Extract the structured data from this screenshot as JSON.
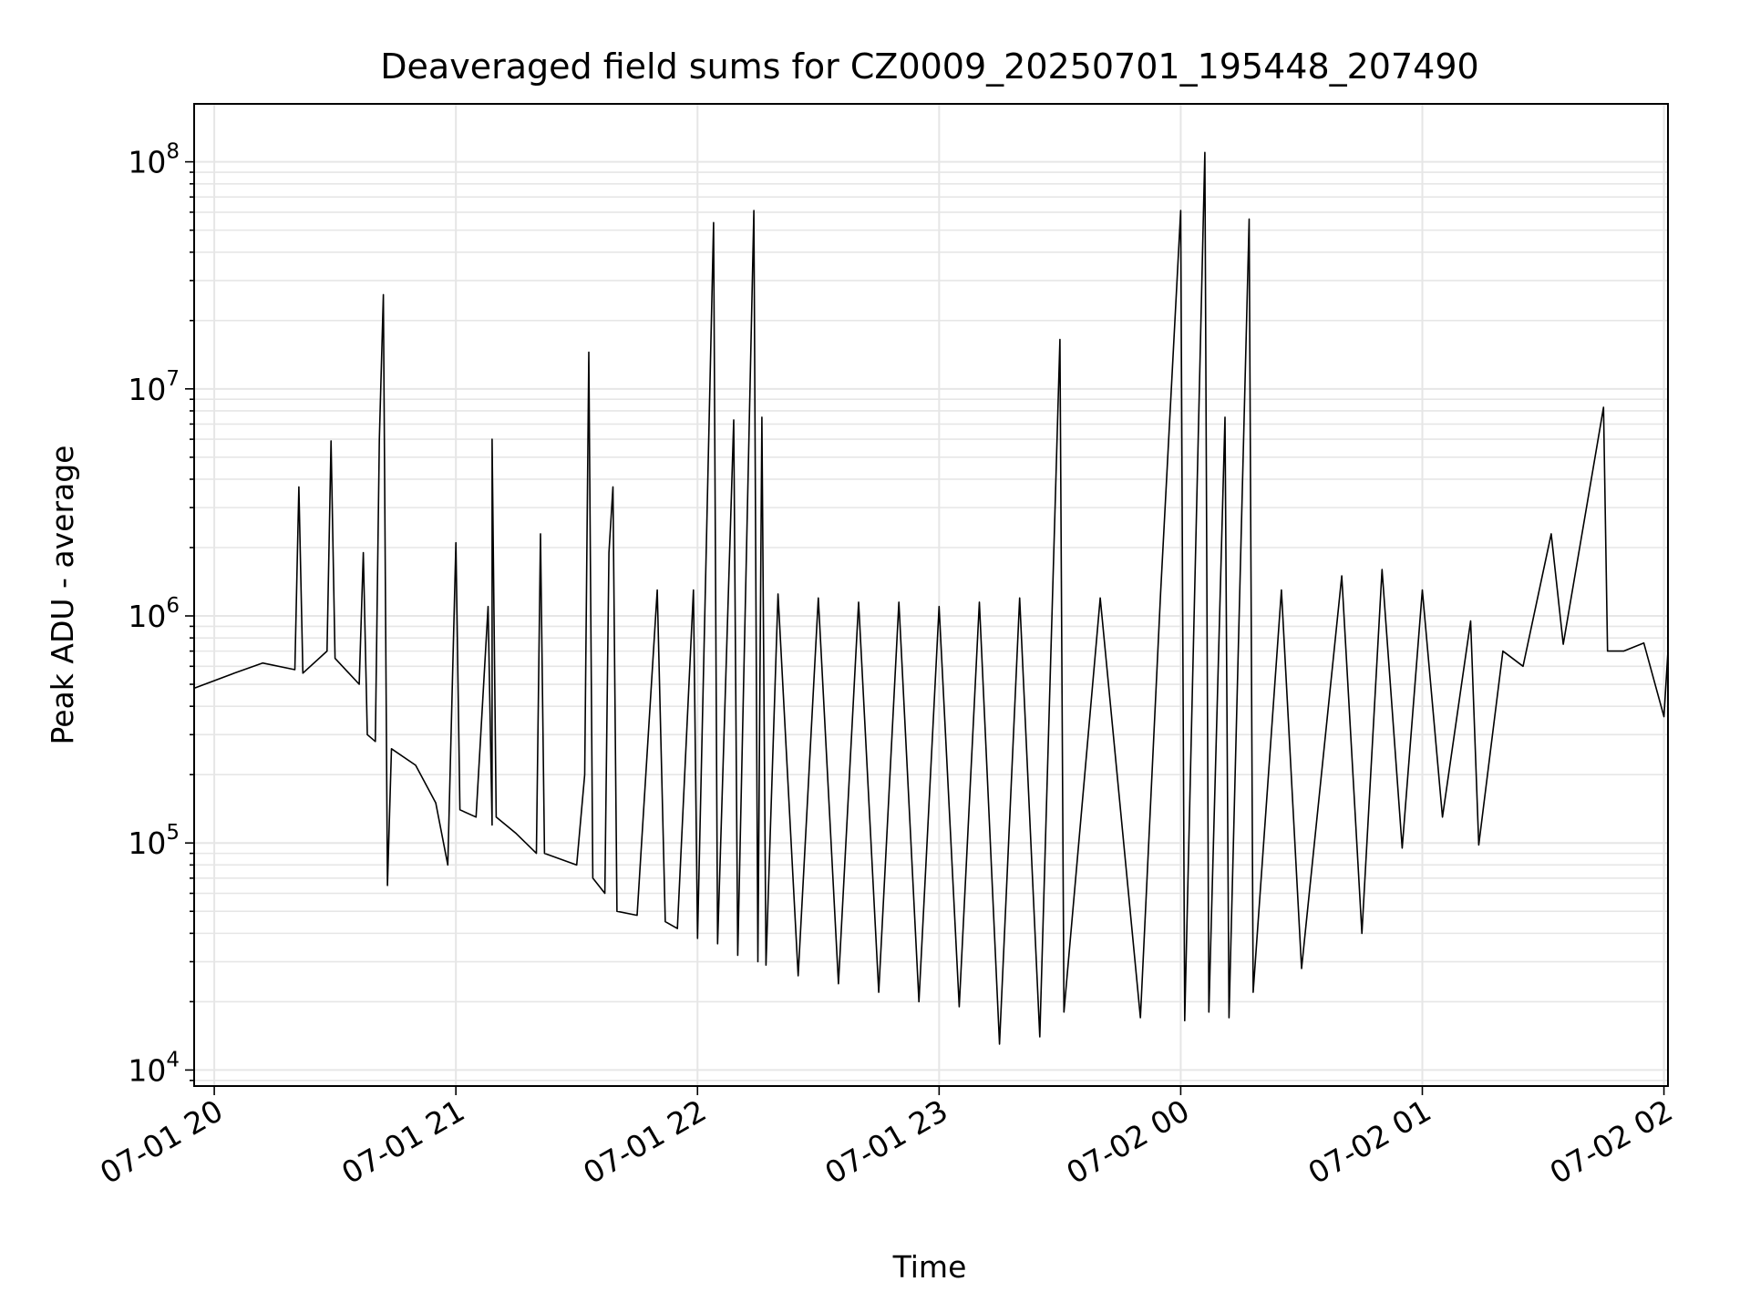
{
  "chart_data": {
    "type": "line",
    "title": "Deaveraged field sums for CZ0009_20250701_195448_207490",
    "xlabel": "Time",
    "ylabel": "Peak ADU - average",
    "x_scale": "time",
    "y_scale": "log",
    "xlim": [
      "2025-07-01 19:55",
      "2025-07-02 02:01"
    ],
    "ylim": [
      8500,
      180000000
    ],
    "grid": true,
    "legend": "none",
    "line_color": "#000000",
    "grid_color": "#e6e6e6",
    "x_ticks": [
      {
        "t": "2025-07-01 20:00",
        "label": "07-01 20"
      },
      {
        "t": "2025-07-01 21:00",
        "label": "07-01 21"
      },
      {
        "t": "2025-07-01 22:00",
        "label": "07-01 22"
      },
      {
        "t": "2025-07-01 23:00",
        "label": "07-01 23"
      },
      {
        "t": "2025-07-02 00:00",
        "label": "07-02 00"
      },
      {
        "t": "2025-07-02 01:00",
        "label": "07-02 01"
      },
      {
        "t": "2025-07-02 02:00",
        "label": "07-02 02"
      }
    ],
    "y_ticks": [
      {
        "v": 10000,
        "base": "10",
        "exp": "4"
      },
      {
        "v": 100000,
        "base": "10",
        "exp": "5"
      },
      {
        "v": 1000000,
        "base": "10",
        "exp": "6"
      },
      {
        "v": 10000000,
        "base": "10",
        "exp": "7"
      },
      {
        "v": 100000000,
        "base": "10",
        "exp": "8"
      }
    ],
    "series": [
      {
        "points": [
          [
            "2025-07-01 19:55",
            480000
          ],
          [
            "2025-07-01 20:05",
            560000
          ],
          [
            "2025-07-01 20:12",
            620000
          ],
          [
            "2025-07-01 20:20",
            580000
          ],
          [
            "2025-07-01 20:21",
            3700000
          ],
          [
            "2025-07-01 20:22",
            560000
          ],
          [
            "2025-07-01 20:28",
            700000
          ],
          [
            "2025-07-01 20:29",
            5900000
          ],
          [
            "2025-07-01 20:30",
            650000
          ],
          [
            "2025-07-01 20:36",
            500000
          ],
          [
            "2025-07-01 20:37",
            1900000
          ],
          [
            "2025-07-01 20:38",
            300000
          ],
          [
            "2025-07-01 20:40",
            280000
          ],
          [
            "2025-07-01 20:41",
            6000000
          ],
          [
            "2025-07-01 20:42",
            26000000
          ],
          [
            "2025-07-01 20:43",
            65000
          ],
          [
            "2025-07-01 20:44",
            260000
          ],
          [
            "2025-07-01 20:50",
            220000
          ],
          [
            "2025-07-01 20:55",
            150000
          ],
          [
            "2025-07-01 20:58",
            80000
          ],
          [
            "2025-07-01 21:00",
            2100000
          ],
          [
            "2025-07-01 21:01",
            140000
          ],
          [
            "2025-07-01 21:05",
            130000
          ],
          [
            "2025-07-01 21:08",
            1100000
          ],
          [
            "2025-07-01 21:09",
            120000
          ],
          [
            "2025-07-01 21:09",
            6000000
          ],
          [
            "2025-07-01 21:10",
            130000
          ],
          [
            "2025-07-01 21:15",
            110000
          ],
          [
            "2025-07-01 21:20",
            90000
          ],
          [
            "2025-07-01 21:21",
            2300000
          ],
          [
            "2025-07-01 21:22",
            90000
          ],
          [
            "2025-07-01 21:30",
            80000
          ],
          [
            "2025-07-01 21:32",
            200000
          ],
          [
            "2025-07-01 21:33",
            14500000
          ],
          [
            "2025-07-01 21:34",
            70000
          ],
          [
            "2025-07-01 21:37",
            60000
          ],
          [
            "2025-07-01 21:38",
            1900000
          ],
          [
            "2025-07-01 21:39",
            3700000
          ],
          [
            "2025-07-01 21:40",
            50000
          ],
          [
            "2025-07-01 21:45",
            48000
          ],
          [
            "2025-07-01 21:50",
            1300000
          ],
          [
            "2025-07-01 21:52",
            45000
          ],
          [
            "2025-07-01 21:55",
            42000
          ],
          [
            "2025-07-01 21:59",
            1300000
          ],
          [
            "2025-07-01 22:00",
            38000
          ],
          [
            "2025-07-01 22:04",
            54000000
          ],
          [
            "2025-07-01 22:05",
            36000
          ],
          [
            "2025-07-01 22:09",
            7300000
          ],
          [
            "2025-07-01 22:10",
            32000
          ],
          [
            "2025-07-01 22:14",
            61000000
          ],
          [
            "2025-07-01 22:15",
            30000
          ],
          [
            "2025-07-01 22:16",
            7500000
          ],
          [
            "2025-07-01 22:17",
            29000
          ],
          [
            "2025-07-01 22:20",
            1250000
          ],
          [
            "2025-07-01 22:25",
            26000
          ],
          [
            "2025-07-01 22:30",
            1200000
          ],
          [
            "2025-07-01 22:35",
            24000
          ],
          [
            "2025-07-01 22:40",
            1150000
          ],
          [
            "2025-07-01 22:45",
            22000
          ],
          [
            "2025-07-01 22:50",
            1150000
          ],
          [
            "2025-07-01 22:55",
            20000
          ],
          [
            "2025-07-01 23:00",
            1100000
          ],
          [
            "2025-07-01 23:05",
            19000
          ],
          [
            "2025-07-01 23:10",
            1150000
          ],
          [
            "2025-07-01 23:15",
            13000
          ],
          [
            "2025-07-01 23:20",
            1200000
          ],
          [
            "2025-07-01 23:25",
            14000
          ],
          [
            "2025-07-01 23:30",
            16500000
          ],
          [
            "2025-07-01 23:31",
            18000
          ],
          [
            "2025-07-01 23:40",
            1200000
          ],
          [
            "2025-07-01 23:50",
            17000
          ],
          [
            "2025-07-01 23:55",
            1250000
          ],
          [
            "2025-07-02 00:00",
            61000000
          ],
          [
            "2025-07-02 00:01",
            16500
          ],
          [
            "2025-07-02 00:06",
            110000000
          ],
          [
            "2025-07-02 00:07",
            18000
          ],
          [
            "2025-07-02 00:11",
            7500000
          ],
          [
            "2025-07-02 00:12",
            17000
          ],
          [
            "2025-07-02 00:17",
            56000000
          ],
          [
            "2025-07-02 00:18",
            22000
          ],
          [
            "2025-07-02 00:25",
            1300000
          ],
          [
            "2025-07-02 00:30",
            28000
          ],
          [
            "2025-07-02 00:40",
            1500000
          ],
          [
            "2025-07-02 00:45",
            40000
          ],
          [
            "2025-07-02 00:50",
            1600000
          ],
          [
            "2025-07-02 00:55",
            95000
          ],
          [
            "2025-07-02 01:00",
            1300000
          ],
          [
            "2025-07-02 01:05",
            130000
          ],
          [
            "2025-07-02 01:12",
            950000
          ],
          [
            "2025-07-02 01:14",
            98000
          ],
          [
            "2025-07-02 01:20",
            700000
          ],
          [
            "2025-07-02 01:25",
            600000
          ],
          [
            "2025-07-02 01:32",
            2300000
          ],
          [
            "2025-07-02 01:35",
            750000
          ],
          [
            "2025-07-02 01:45",
            8300000
          ],
          [
            "2025-07-02 01:46",
            700000
          ],
          [
            "2025-07-02 01:50",
            700000
          ],
          [
            "2025-07-02 01:55",
            760000
          ],
          [
            "2025-07-02 02:00",
            360000
          ],
          [
            "2025-07-02 02:01",
            700000
          ]
        ]
      }
    ]
  }
}
